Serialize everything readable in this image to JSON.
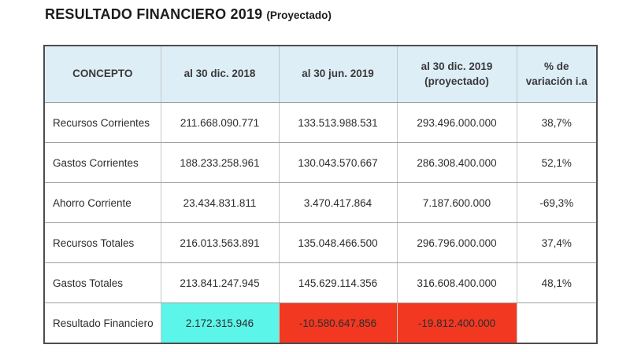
{
  "title": {
    "main": "RESULTADO FINANCIERO 2019",
    "suffix": "(Proyectado)"
  },
  "table": {
    "columns": [
      "CONCEPTO",
      "al 30 dic. 2018",
      "al 30 jun. 2019",
      "al 30 dic. 2019\n(proyectado)",
      "% de\nvariación i.a"
    ],
    "rows": [
      {
        "cells": [
          "Recursos Corrientes",
          "211.668.090.771",
          "133.513.988.531",
          "293.496.000.000",
          "38,7%"
        ]
      },
      {
        "cells": [
          "Gastos Corrientes",
          "188.233.258.961",
          "130.043.570.667",
          "286.308.400.000",
          "52,1%"
        ]
      },
      {
        "cells": [
          "Ahorro Corriente",
          "23.434.831.811",
          "3.470.417.864",
          "7.187.600.000",
          "-69,3%"
        ]
      },
      {
        "cells": [
          "Recursos Totales",
          "216.013.563.891",
          "135.048.466.500",
          "296.796.000.000",
          "37,4%"
        ]
      },
      {
        "cells": [
          "Gastos Totales",
          "213.841.247.945",
          "145.629.114.356",
          "316.608.400.000",
          "48,1%"
        ]
      },
      {
        "cells": [
          "Resultado Financiero",
          "2.172.315.946",
          "-10.580.647.856",
          "-19.812.400.000",
          ""
        ]
      }
    ],
    "colors": {
      "header_bg": "#ddeef7",
      "positive_cell_bg": "#5bf5e9",
      "negative_cell_bg": "#f23821",
      "outer_border": "#4d4d4d",
      "text": "#2d2d2d"
    }
  }
}
